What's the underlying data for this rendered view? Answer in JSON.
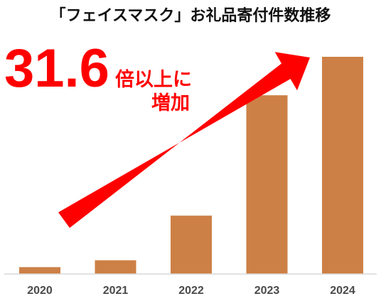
{
  "chart_data": {
    "type": "bar",
    "title": "「フェイスマスク」お礼品寄付件数推移",
    "categories": [
      "2020",
      "2021",
      "2022",
      "2023",
      "2024"
    ],
    "values": [
      1.0,
      2.0,
      8.5,
      26.0,
      31.6
    ],
    "ylim": [
      0,
      31.6
    ],
    "grid": false,
    "legend": "none",
    "annotation": {
      "number": "31.6",
      "suffix_line1": "倍以上に",
      "suffix_line2": "増加"
    },
    "colors": {
      "bar": "#cd8046",
      "arrow": "#ff0000",
      "baseline": "#d9d9d9"
    }
  }
}
